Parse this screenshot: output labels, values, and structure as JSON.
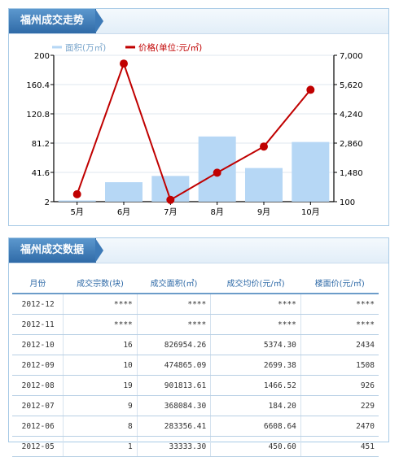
{
  "chart_panel": {
    "title": "福州成交走势"
  },
  "table_panel": {
    "title": "福州成交数据"
  },
  "chart_data": {
    "type": "bar+line",
    "categories": [
      "5月",
      "6月",
      "7月",
      "8月",
      "9月",
      "10月"
    ],
    "series": [
      {
        "name": "面积(万㎡)",
        "type": "bar",
        "axis": "left",
        "color": "#b6d7f5",
        "values": [
          3.33,
          28.34,
          36.81,
          90.18,
          47.49,
          82.7
        ]
      },
      {
        "name": "价格(单位:元/㎡)",
        "type": "line",
        "axis": "right",
        "color": "#c00000",
        "values": [
          450.6,
          6608.64,
          184.2,
          1466.52,
          2699.38,
          5374.3
        ]
      }
    ],
    "y_left": {
      "ticks": [
        "200",
        "160.4",
        "120.8",
        "81.2",
        "41.6",
        "2"
      ],
      "range": [
        2,
        200
      ]
    },
    "y_right": {
      "ticks": [
        "7,000",
        "5,620",
        "4,240",
        "2,860",
        "1,480",
        "100"
      ],
      "range": [
        100,
        7000
      ]
    },
    "legend": "top",
    "grid": true
  },
  "table": {
    "headers": [
      "月份",
      "成交宗数(块)",
      "成交面积(㎡)",
      "成交均价(元/㎡)",
      "楼面价(元/㎡)"
    ],
    "rows": [
      [
        "2012-12",
        "****",
        "****",
        "****",
        "****"
      ],
      [
        "2012-11",
        "****",
        "****",
        "****",
        "****"
      ],
      [
        "2012-10",
        "16",
        "826954.26",
        "5374.30",
        "2434"
      ],
      [
        "2012-09",
        "10",
        "474865.09",
        "2699.38",
        "1508"
      ],
      [
        "2012-08",
        "19",
        "901813.61",
        "1466.52",
        "926"
      ],
      [
        "2012-07",
        "9",
        "368084.30",
        "184.20",
        "229"
      ],
      [
        "2012-06",
        "8",
        "283356.41",
        "6608.64",
        "2470"
      ],
      [
        "2012-05",
        "1",
        "33333.30",
        "450.60",
        "451"
      ]
    ]
  }
}
